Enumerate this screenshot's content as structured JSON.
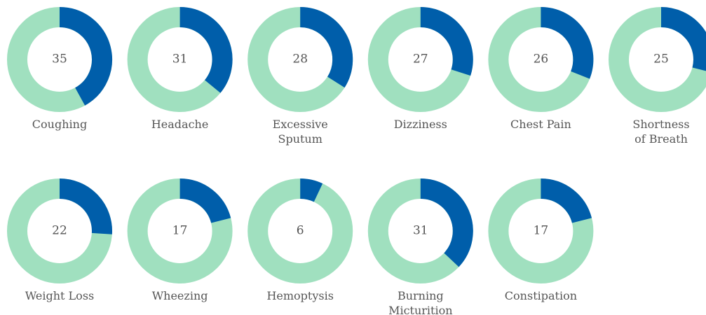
{
  "chart_data": [
    {
      "type": "donut",
      "title": [
        "Coughing"
      ],
      "value": 35,
      "share": 42,
      "colors": [
        "#005eaa",
        "#a0e0bf"
      ]
    },
    {
      "type": "donut",
      "title": [
        "Headache"
      ],
      "value": 31,
      "share": 36,
      "colors": [
        "#005eaa",
        "#a0e0bf"
      ]
    },
    {
      "type": "donut",
      "title": [
        "Excessive",
        "Sputum"
      ],
      "value": 28,
      "share": 34,
      "colors": [
        "#005eaa",
        "#a0e0bf"
      ]
    },
    {
      "type": "donut",
      "title": [
        "Dizziness"
      ],
      "value": 27,
      "share": 30,
      "colors": [
        "#005eaa",
        "#a0e0bf"
      ]
    },
    {
      "type": "donut",
      "title": [
        "Chest Pain"
      ],
      "value": 26,
      "share": 31,
      "colors": [
        "#005eaa",
        "#a0e0bf"
      ]
    },
    {
      "type": "donut",
      "title": [
        "Shortness",
        "of Breath"
      ],
      "value": 25,
      "share": 29,
      "colors": [
        "#005eaa",
        "#a0e0bf"
      ]
    },
    {
      "type": "donut",
      "title": [
        "Weight Loss"
      ],
      "value": 22,
      "share": 26,
      "colors": [
        "#005eaa",
        "#a0e0bf"
      ]
    },
    {
      "type": "donut",
      "title": [
        "Wheezing"
      ],
      "value": 17,
      "share": 21,
      "colors": [
        "#005eaa",
        "#a0e0bf"
      ]
    },
    {
      "type": "donut",
      "title": [
        "Hemoptysis"
      ],
      "value": 6,
      "share": 7,
      "colors": [
        "#005eaa",
        "#a0e0bf"
      ]
    },
    {
      "type": "donut",
      "title": [
        "Burning",
        "Micturition"
      ],
      "value": 31,
      "share": 37,
      "colors": [
        "#005eaa",
        "#a0e0bf"
      ]
    },
    {
      "type": "donut",
      "title": [
        "Constipation"
      ],
      "value": 17,
      "share": 21,
      "colors": [
        "#005eaa",
        "#a0e0bf"
      ]
    }
  ]
}
